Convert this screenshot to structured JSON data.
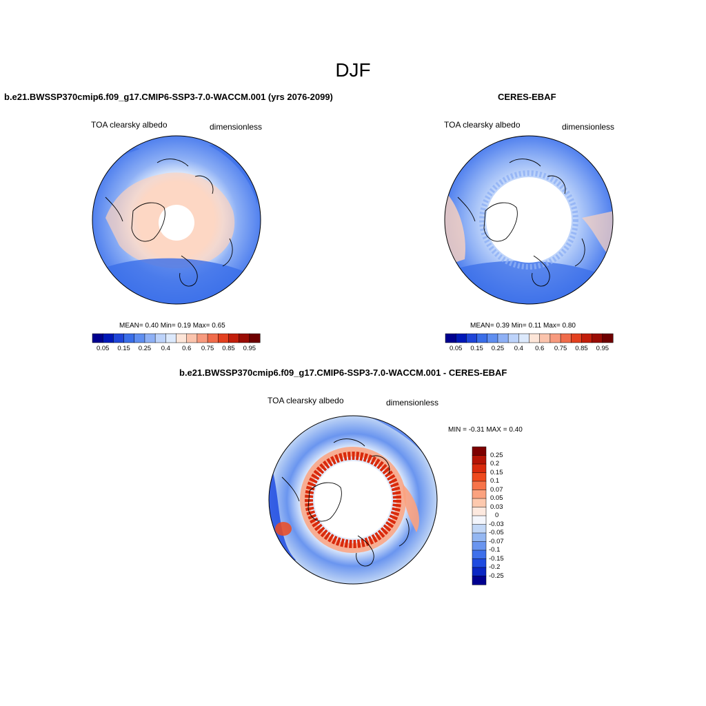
{
  "title": "DJF",
  "panels": {
    "model": {
      "title": "b.e21.BWSSP370cmip6.f09_g17.CMIP6-SSP3-7.0-WACCM.001 (yrs 2076-2099)",
      "left_label": "TOA clearsky albedo",
      "right_label": "dimensionless",
      "stats": "MEAN=   0.40   Min=    0.19   Max=    0.65"
    },
    "obs": {
      "title": "CERES-EBAF",
      "left_label": "TOA clearsky albedo",
      "right_label": "dimensionless",
      "stats": "MEAN=   0.39   Min=    0.11   Max=    0.80"
    },
    "diff": {
      "title": "b.e21.BWSSP370cmip6.f09_g17.CMIP6-SSP3-7.0-WACCM.001 - CERES-EBAF",
      "left_label": "TOA clearsky albedo",
      "right_label": "dimensionless",
      "stats": "MIN =  -0.31 MAX =   0.40"
    }
  },
  "colorbar_abs": {
    "ticks": [
      "0.05",
      "0.15",
      "0.25",
      "0.4",
      "0.6",
      "0.75",
      "0.85",
      "0.95"
    ],
    "colors": [
      "#00008f",
      "#0018b8",
      "#1f45d8",
      "#3a6ee8",
      "#5f8ef0",
      "#8eb0f5",
      "#bdd3fa",
      "#dce9fc",
      "#fde5d8",
      "#fbc4ad",
      "#f79a7e",
      "#f06c4b",
      "#e3401f",
      "#c21e0b",
      "#9a0c04",
      "#6e0000"
    ]
  },
  "colorbar_diff": {
    "ticks": [
      "0.25",
      "0.2",
      "0.15",
      "0.1",
      "0.07",
      "0.05",
      "0.03",
      "0",
      "-0.03",
      "-0.05",
      "-0.07",
      "-0.1",
      "-0.15",
      "-0.2",
      "-0.25"
    ],
    "colors": [
      "#7d0000",
      "#b51405",
      "#d92a0c",
      "#ee4a1e",
      "#f7744a",
      "#fba27f",
      "#fdc9ae",
      "#fde9df",
      "#f4f6fc",
      "#c2d7f6",
      "#94b7f2",
      "#6a95ef",
      "#3f70eb",
      "#1f4be0",
      "#0a27c4",
      "#00008f"
    ]
  }
}
